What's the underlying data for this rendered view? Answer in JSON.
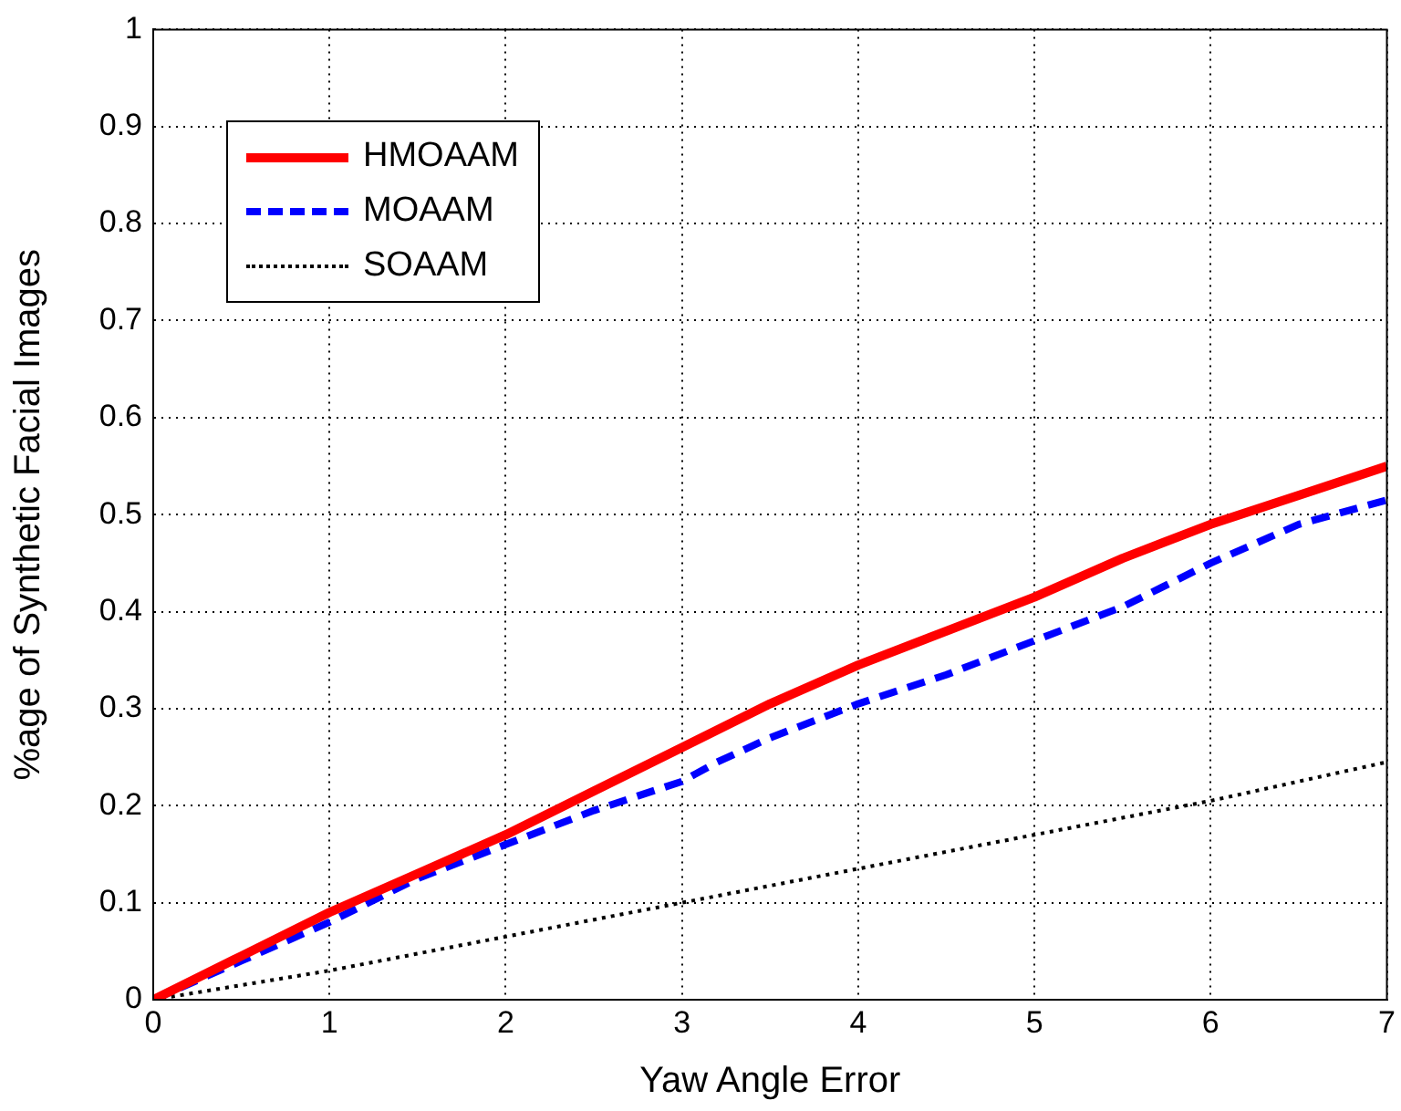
{
  "chart_data": {
    "type": "line",
    "xlabel": "Yaw Angle Error",
    "ylabel": "%age of Synthetic Facial Images",
    "xlim": [
      0,
      7
    ],
    "xticks": [
      0,
      1,
      2,
      3,
      4,
      5,
      6,
      7
    ],
    "ylim": [
      0,
      1
    ],
    "yticks": [
      0,
      0.1,
      0.2,
      0.3,
      0.4,
      0.5,
      0.6,
      0.7,
      0.8,
      0.9,
      1
    ],
    "grid": true,
    "legend": "top left",
    "marker": "none",
    "series": [
      {
        "name": "HMOAAM",
        "color": "#ff0000",
        "line_style": "solid",
        "x": [
          0,
          0.5,
          1,
          1.5,
          2,
          2.5,
          3,
          3.5,
          4,
          4.5,
          5,
          5.5,
          6,
          6.5,
          7
        ],
        "values": [
          0,
          0.045,
          0.09,
          0.13,
          0.17,
          0.215,
          0.26,
          0.305,
          0.345,
          0.38,
          0.415,
          0.455,
          0.49,
          0.52,
          0.55
        ]
      },
      {
        "name": "MOAAM",
        "color": "#0000ff",
        "line_style": "dashed",
        "x": [
          0,
          0.5,
          1,
          1.5,
          2,
          2.5,
          3,
          3.2,
          3.5,
          4,
          4.5,
          5,
          5.5,
          6,
          6.5,
          7
        ],
        "values": [
          0,
          0.04,
          0.08,
          0.125,
          0.16,
          0.195,
          0.225,
          0.245,
          0.27,
          0.305,
          0.335,
          0.37,
          0.405,
          0.45,
          0.49,
          0.515
        ]
      },
      {
        "name": "SOAAM",
        "color": "#000000",
        "line_style": "dotted",
        "x": [
          0,
          1,
          2,
          3,
          4,
          5,
          6,
          7
        ],
        "values": [
          0,
          0.03,
          0.065,
          0.1,
          0.135,
          0.17,
          0.205,
          0.245
        ]
      }
    ]
  }
}
